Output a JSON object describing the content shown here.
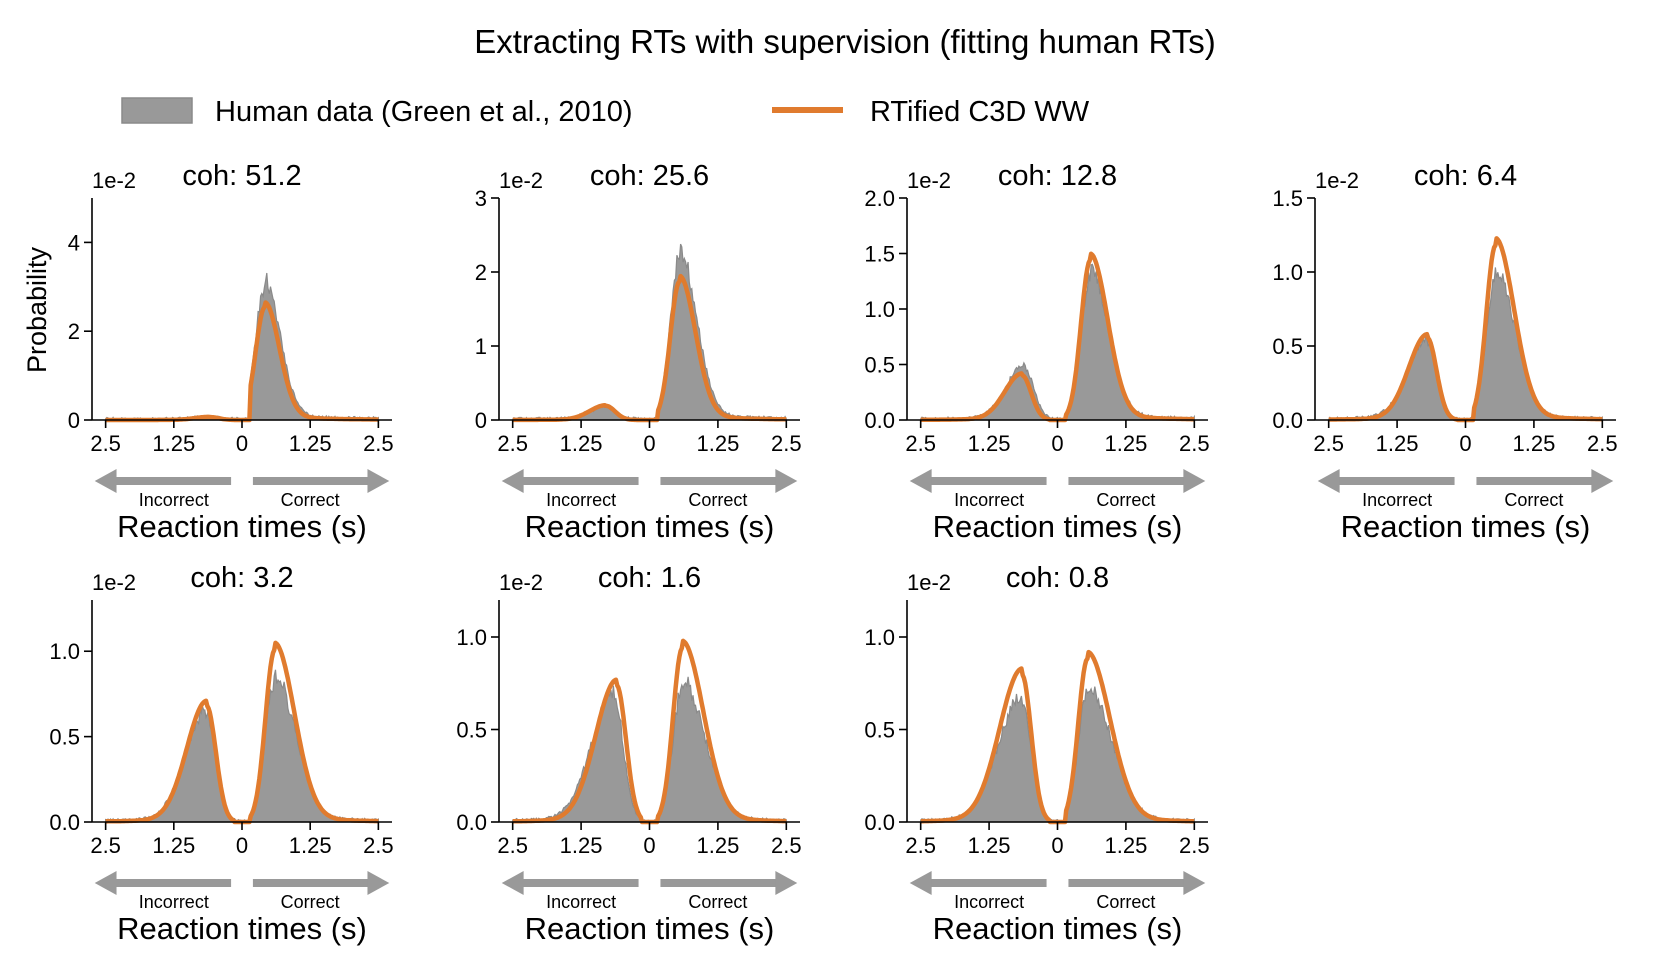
{
  "figure": {
    "title": "Extracting RTs with supervision (fitting human RTs)",
    "legend": {
      "human_label": "Human data (Green et al., 2010)",
      "model_label": "RTified C3D  WW"
    },
    "colors": {
      "human_fill": "#999999",
      "human_edge": "#8a8a8a",
      "model": "#E07B2E",
      "arrow": "#999999"
    },
    "ylabel": "Probability",
    "xlabel": "Reaction times (s)",
    "scale_label": "1e-2",
    "incorrect_label": "Incorrect",
    "correct_label": "Correct",
    "xtick_labels": [
      "2.5",
      "1.25",
      "0",
      "1.25",
      "2.5"
    ],
    "panel_title_prefix": "coh: "
  },
  "chart_data": [
    {
      "type": "area",
      "coh": "51.2",
      "ylim": [
        0,
        5
      ],
      "yticks": [
        0,
        2,
        4
      ],
      "ytick_labels": [
        "0",
        "2",
        "4"
      ],
      "x": [
        -2.5,
        2.5
      ],
      "x_tick_values": [
        -2.5,
        -1.25,
        0,
        1.25,
        2.5
      ],
      "human": {
        "correct_peak": {
          "x": 0.42,
          "y": 3.1
        },
        "incorrect_peak": {
          "x": -0.6,
          "y": 0.05
        }
      },
      "model": {
        "correct_peak": {
          "x": 0.42,
          "y": 2.65
        },
        "incorrect_peak": {
          "x": -0.6,
          "y": 0.07
        }
      }
    },
    {
      "type": "area",
      "coh": "25.6",
      "ylim": [
        0,
        3
      ],
      "yticks": [
        0,
        1,
        2,
        3
      ],
      "ytick_labels": [
        "0",
        "1",
        "2",
        "3"
      ],
      "human": {
        "correct_peak": {
          "x": 0.55,
          "y": 2.3
        },
        "incorrect_peak": {
          "x": -0.8,
          "y": 0.15
        }
      },
      "model": {
        "correct_peak": {
          "x": 0.55,
          "y": 1.95
        },
        "incorrect_peak": {
          "x": -0.8,
          "y": 0.2
        }
      }
    },
    {
      "type": "area",
      "coh": "12.8",
      "ylim": [
        0,
        2.0
      ],
      "yticks": [
        0,
        0.5,
        1.0,
        1.5,
        2.0
      ],
      "ytick_labels": [
        "0.0",
        "0.5",
        "1.0",
        "1.5",
        "2.0"
      ],
      "human": {
        "correct_peak": {
          "x": 0.6,
          "y": 1.35
        },
        "incorrect_peak": {
          "x": -0.6,
          "y": 0.48
        }
      },
      "model": {
        "correct_peak": {
          "x": 0.6,
          "y": 1.5
        },
        "incorrect_peak": {
          "x": -0.65,
          "y": 0.42
        }
      }
    },
    {
      "type": "area",
      "coh": "6.4",
      "ylim": [
        0,
        1.5
      ],
      "yticks": [
        0,
        0.5,
        1.0,
        1.5
      ],
      "ytick_labels": [
        "0.0",
        "0.5",
        "1.0",
        "1.5"
      ],
      "human": {
        "correct_peak": {
          "x": 0.55,
          "y": 1.0
        },
        "incorrect_peak": {
          "x": -0.7,
          "y": 0.55
        }
      },
      "model": {
        "correct_peak": {
          "x": 0.55,
          "y": 1.23
        },
        "incorrect_peak": {
          "x": -0.7,
          "y": 0.58
        }
      }
    },
    {
      "type": "area",
      "coh": "3.2",
      "ylim": [
        0,
        1.3
      ],
      "yticks": [
        0,
        0.5,
        1.0
      ],
      "ytick_labels": [
        "0.0",
        "0.5",
        "1.0"
      ],
      "human": {
        "correct_peak": {
          "x": 0.6,
          "y": 0.85
        },
        "incorrect_peak": {
          "x": -0.65,
          "y": 0.65
        }
      },
      "model": {
        "correct_peak": {
          "x": 0.6,
          "y": 1.05
        },
        "incorrect_peak": {
          "x": -0.65,
          "y": 0.71
        }
      }
    },
    {
      "type": "area",
      "coh": "1.6",
      "ylim": [
        0,
        1.2
      ],
      "yticks": [
        0,
        0.5,
        1.0
      ],
      "ytick_labels": [
        "0.0",
        "0.5",
        "1.0"
      ],
      "human": {
        "correct_peak": {
          "x": 0.6,
          "y": 0.76
        },
        "incorrect_peak": {
          "x": -0.65,
          "y": 0.7
        }
      },
      "model": {
        "correct_peak": {
          "x": 0.6,
          "y": 0.98
        },
        "incorrect_peak": {
          "x": -0.6,
          "y": 0.77
        }
      }
    },
    {
      "type": "area",
      "coh": "0.8",
      "ylim": [
        0,
        1.2
      ],
      "yticks": [
        0,
        0.5,
        1.0
      ],
      "ytick_labels": [
        "0.0",
        "0.5",
        "1.0"
      ],
      "human": {
        "correct_peak": {
          "x": 0.55,
          "y": 0.73
        },
        "incorrect_peak": {
          "x": -0.65,
          "y": 0.68
        }
      },
      "model": {
        "correct_peak": {
          "x": 0.55,
          "y": 0.92
        },
        "incorrect_peak": {
          "x": -0.65,
          "y": 0.83
        }
      }
    }
  ]
}
